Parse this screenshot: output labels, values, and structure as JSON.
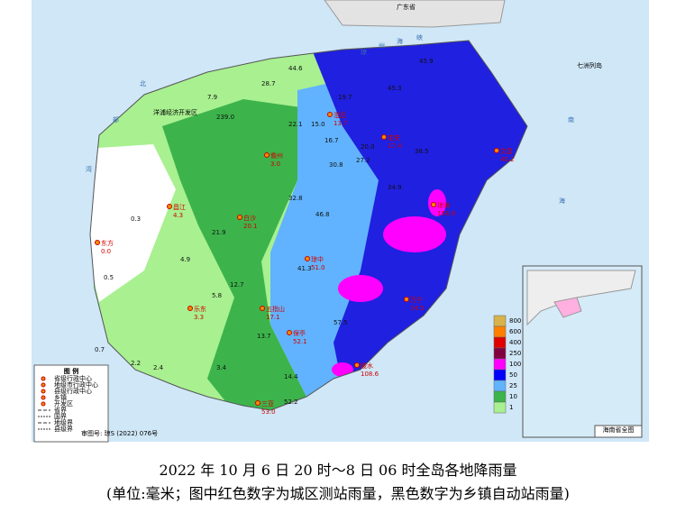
{
  "map": {
    "caption": [
      "2022 年 10 月 6 日 20 时～8 日 06 时全岛各地降雨量",
      "(单位:毫米；图中红色数字为城区测站雨量，黑色数字为乡镇自动站雨量)"
    ],
    "mainland": "广东省",
    "islands": "七洲列岛",
    "zone": "洋浦经济开发区",
    "seas": [
      "琼",
      "州",
      "海",
      "峡",
      "北",
      "部",
      "湾",
      "南",
      "海"
    ],
    "approval": "审图号: 琼S (2022) 076号",
    "legend": {
      "title": "图 例",
      "items": [
        "省级行政中心",
        "地级市行政中心",
        "县级行政中心",
        "乡镇",
        "开发区",
        "省界",
        "国界",
        "地级界",
        "县级界"
      ]
    },
    "scale": {
      "values": [
        "800",
        "600",
        "400",
        "250",
        "100",
        "50",
        "25",
        "10",
        "1"
      ],
      "colors": [
        "#d8b24a",
        "#ff8000",
        "#e00000",
        "#800040",
        "#ff00ff",
        "#0000ff",
        "#61b3ff",
        "#3cb44b",
        "#a8f090"
      ]
    },
    "cities": [
      {
        "name": "东方",
        "value": "0.0"
      },
      {
        "name": "昌江",
        "value": "4.3"
      },
      {
        "name": "儋州",
        "value": "3.0"
      },
      {
        "name": "白沙",
        "value": "20.1"
      },
      {
        "name": "琼中",
        "value": "51.0"
      },
      {
        "name": "乐东",
        "value": "3.3"
      },
      {
        "name": "五指山",
        "value": "17.1"
      },
      {
        "name": "保亭",
        "value": "52.1"
      },
      {
        "name": "万宁",
        "value": "14.5"
      },
      {
        "name": "琼海",
        "value": "158.9"
      },
      {
        "name": "定安",
        "value": "17.4"
      },
      {
        "name": "澄迈",
        "value": "13.7"
      },
      {
        "name": "文昌",
        "value": "40.2"
      },
      {
        "name": "三亚",
        "value": "53.0"
      },
      {
        "name": "陵水",
        "value": "108.6"
      }
    ],
    "stations": [
      "44.6",
      "45.9",
      "28.7",
      "239.0",
      "22.1",
      "15.0",
      "19.7",
      "16.7",
      "20.0",
      "27.2",
      "30.8",
      "32.8",
      "46.8",
      "57.5",
      "21.9",
      "12.7",
      "13.7",
      "14.4",
      "52.2",
      "0.3",
      "0.5",
      "0.7",
      "2.2",
      "2.4",
      "3.4",
      "5.8",
      "4.9",
      "7.9",
      "34.9",
      "36.5",
      "45.3",
      "41.3"
    ],
    "inset": "海南省全图"
  }
}
